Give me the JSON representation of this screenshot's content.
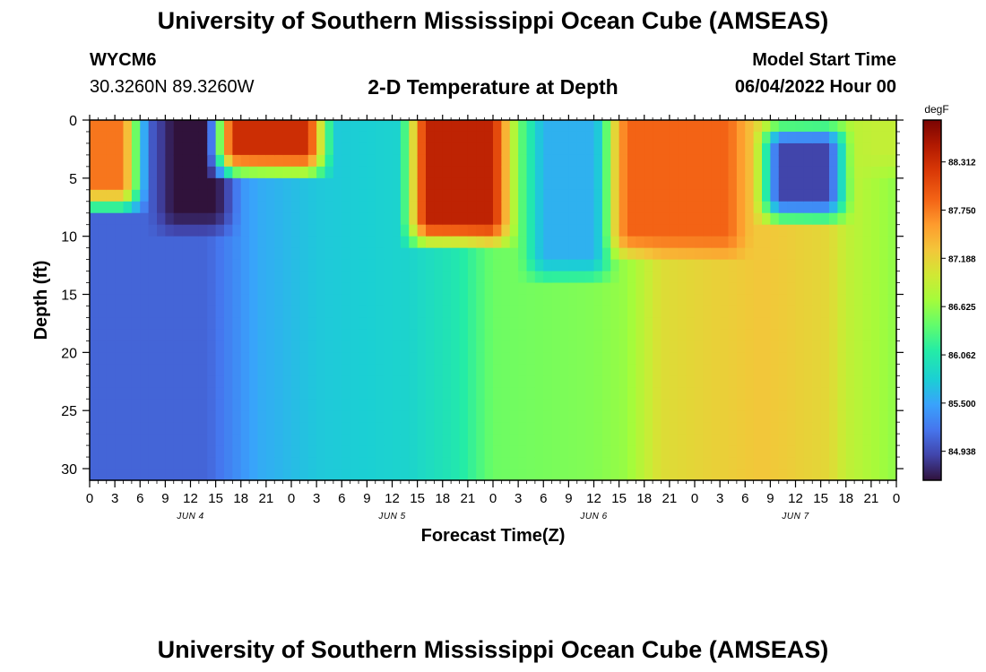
{
  "page": {
    "title_top": "University of Southern Mississippi Ocean Cube (AMSEAS)",
    "title_bottom": "University of Southern Mississippi Ocean Cube (AMSEAS)",
    "station_id": "WYCM6",
    "station_coords": "30.3260N  89.3260W",
    "start_label": "Model Start Time",
    "start_value": "06/04/2022 Hour 00"
  },
  "chart_data": {
    "type": "heatmap",
    "title": "2-D Temperature at Depth",
    "xlabel": "Forecast Time(Z)",
    "ylabel": "Depth (ft)",
    "x_range_hours": [
      0,
      96
    ],
    "y_range": [
      0,
      31
    ],
    "y_inverted": true,
    "x_tick_labels": [
      "0",
      "3",
      "6",
      "9",
      "12",
      "15",
      "18",
      "21",
      "0",
      "3",
      "6",
      "9",
      "12",
      "15",
      "18",
      "21",
      "0",
      "3",
      "6",
      "9",
      "12",
      "15",
      "18",
      "21",
      "0",
      "3",
      "6",
      "9",
      "12",
      "15",
      "18",
      "21",
      "0"
    ],
    "x_tick_hours": [
      0,
      3,
      6,
      9,
      12,
      15,
      18,
      21,
      24,
      27,
      30,
      33,
      36,
      39,
      42,
      45,
      48,
      51,
      54,
      57,
      60,
      63,
      66,
      69,
      72,
      75,
      78,
      81,
      84,
      87,
      90,
      93,
      96
    ],
    "day_labels": [
      {
        "label": "JUN 4",
        "hour": 12
      },
      {
        "label": "JUN 5",
        "hour": 36
      },
      {
        "label": "JUN 6",
        "hour": 60
      },
      {
        "label": "JUN 7",
        "hour": 84
      }
    ],
    "y_tick_values": [
      0,
      5,
      10,
      15,
      20,
      25,
      30
    ],
    "y_tick_labels": [
      "0",
      "5",
      "10",
      "15",
      "20",
      "25",
      "30"
    ],
    "colorbar": {
      "unit": "degF",
      "range": [
        84.6,
        88.8
      ],
      "tick_values": [
        84.938,
        85.5,
        86.062,
        86.625,
        87.188,
        87.75,
        88.312
      ],
      "tick_labels": [
        "84.938",
        "85.500",
        "86.062",
        "86.625",
        "87.188",
        "87.750",
        "88.312"
      ]
    },
    "grid": false,
    "resolution": {
      "hours": 1,
      "depth_ft": 1
    },
    "surface_features": [
      {
        "hours": [
          0,
          4
        ],
        "depth_ft": [
          0,
          6
        ],
        "temp_degF": 87.8
      },
      {
        "hours": [
          10,
          15
        ],
        "depth_ft": [
          0,
          8
        ],
        "temp_degF": 84.6
      },
      {
        "hours": [
          17,
          26
        ],
        "depth_ft": [
          0,
          3
        ],
        "temp_degF": 88.3
      },
      {
        "hours": [
          40,
          48
        ],
        "depth_ft": [
          0,
          9
        ],
        "temp_degF": 88.4
      },
      {
        "hours": [
          54,
          60
        ],
        "depth_ft": [
          0,
          12
        ],
        "temp_degF": 85.6
      },
      {
        "hours": [
          64,
          76
        ],
        "depth_ft": [
          0,
          10
        ],
        "temp_degF": 87.9
      },
      {
        "hours": [
          82,
          88
        ],
        "depth_ft": [
          2,
          7
        ],
        "temp_degF": 84.9
      },
      {
        "hours": [
          93,
          96
        ],
        "depth_ft": [
          0,
          3
        ],
        "temp_degF": 86.9
      }
    ],
    "deep_profile_degF": [
      {
        "hour": 0,
        "temp": 85.1
      },
      {
        "hour": 14,
        "temp": 85.1
      },
      {
        "hour": 20,
        "temp": 85.55
      },
      {
        "hour": 27,
        "temp": 85.75
      },
      {
        "hour": 38,
        "temp": 85.85
      },
      {
        "hour": 44,
        "temp": 86.05
      },
      {
        "hour": 48,
        "temp": 86.45
      },
      {
        "hour": 60,
        "temp": 86.55
      },
      {
        "hour": 64,
        "temp": 86.65
      },
      {
        "hour": 68,
        "temp": 87.1
      },
      {
        "hour": 80,
        "temp": 87.3
      },
      {
        "hour": 88,
        "temp": 87.15
      },
      {
        "hour": 90,
        "temp": 86.9
      },
      {
        "hour": 96,
        "temp": 86.6
      }
    ]
  }
}
